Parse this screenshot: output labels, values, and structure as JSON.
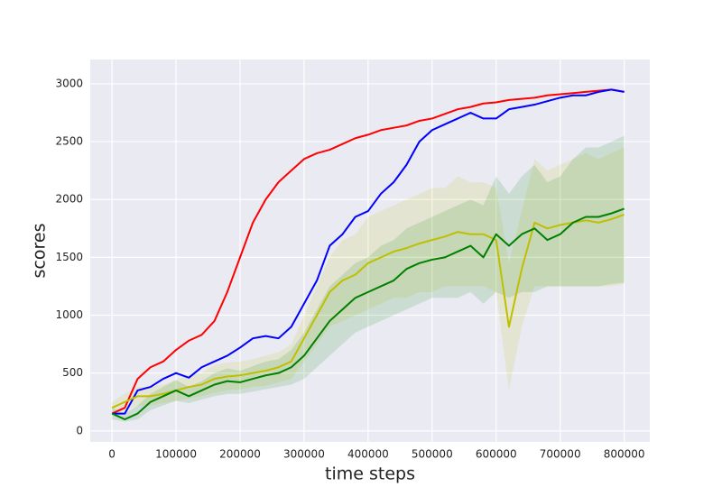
{
  "chart_data": {
    "type": "line",
    "x_label": "time steps",
    "y_label": "scores",
    "x": [
      0,
      20000,
      40000,
      60000,
      80000,
      100000,
      120000,
      140000,
      160000,
      180000,
      200000,
      220000,
      240000,
      260000,
      280000,
      300000,
      320000,
      340000,
      360000,
      380000,
      400000,
      420000,
      440000,
      460000,
      480000,
      500000,
      520000,
      540000,
      560000,
      580000,
      600000,
      620000,
      640000,
      660000,
      680000,
      700000,
      720000,
      740000,
      760000,
      780000,
      800000
    ],
    "series": [
      {
        "color": "#ff0000",
        "values": [
          150,
          200,
          450,
          550,
          600,
          700,
          780,
          830,
          950,
          1200,
          1500,
          1800,
          2000,
          2150,
          2250,
          2350,
          2400,
          2430,
          2480,
          2530,
          2560,
          2600,
          2620,
          2640,
          2680,
          2700,
          2740,
          2780,
          2800,
          2830,
          2840,
          2860,
          2870,
          2880,
          2900,
          2910,
          2920,
          2930,
          2940,
          2950,
          2930
        ]
      },
      {
        "color": "#0000ff",
        "values": [
          150,
          150,
          350,
          380,
          450,
          500,
          460,
          550,
          600,
          650,
          720,
          800,
          820,
          800,
          900,
          1100,
          1300,
          1600,
          1700,
          1850,
          1900,
          2050,
          2150,
          2300,
          2500,
          2600,
          2650,
          2700,
          2750,
          2700,
          2700,
          2780,
          2800,
          2820,
          2850,
          2880,
          2900,
          2900,
          2930,
          2950,
          2930
        ]
      },
      {
        "color": "#bfbf00",
        "values": [
          200,
          250,
          300,
          300,
          320,
          350,
          380,
          400,
          450,
          470,
          480,
          500,
          520,
          550,
          600,
          800,
          1000,
          1200,
          1300,
          1350,
          1450,
          1500,
          1550,
          1580,
          1620,
          1650,
          1680,
          1720,
          1700,
          1700,
          1650,
          900,
          1400,
          1800,
          1750,
          1780,
          1800,
          1820,
          1800,
          1830,
          1870
        ],
        "lower": [
          150,
          180,
          220,
          220,
          240,
          260,
          280,
          300,
          330,
          350,
          360,
          380,
          390,
          420,
          450,
          600,
          750,
          900,
          950,
          1000,
          1050,
          1100,
          1150,
          1150,
          1200,
          1200,
          1250,
          1250,
          1250,
          1250,
          1200,
          350,
          900,
          1250,
          1250,
          1250,
          1250,
          1250,
          1250,
          1250,
          1270
        ],
        "upper": [
          250,
          320,
          380,
          380,
          400,
          440,
          480,
          500,
          570,
          590,
          600,
          620,
          650,
          680,
          750,
          1000,
          1250,
          1500,
          1650,
          1700,
          1850,
          1900,
          1950,
          2000,
          2050,
          2100,
          2100,
          2200,
          2150,
          2150,
          2100,
          1450,
          1900,
          2350,
          2250,
          2300,
          2350,
          2400,
          2350,
          2400,
          2450
        ]
      },
      {
        "color": "#008000",
        "values": [
          150,
          100,
          150,
          250,
          300,
          350,
          300,
          350,
          400,
          430,
          420,
          450,
          480,
          500,
          550,
          650,
          800,
          950,
          1050,
          1150,
          1200,
          1250,
          1300,
          1400,
          1450,
          1480,
          1500,
          1550,
          1600,
          1500,
          1700,
          1600,
          1700,
          1750,
          1650,
          1700,
          1800,
          1850,
          1850,
          1880,
          1920
        ],
        "lower": [
          100,
          80,
          100,
          180,
          220,
          260,
          240,
          270,
          300,
          320,
          320,
          340,
          360,
          380,
          400,
          450,
          550,
          650,
          750,
          850,
          900,
          950,
          1000,
          1050,
          1100,
          1150,
          1150,
          1150,
          1200,
          1100,
          1200,
          1150,
          1200,
          1200,
          1250,
          1250,
          1250,
          1250,
          1250,
          1270,
          1280
        ],
        "upper": [
          200,
          150,
          220,
          320,
          380,
          440,
          380,
          430,
          500,
          540,
          520,
          560,
          600,
          620,
          700,
          850,
          1050,
          1250,
          1350,
          1450,
          1500,
          1600,
          1650,
          1750,
          1800,
          1850,
          1900,
          1950,
          2000,
          1950,
          2200,
          2050,
          2200,
          2300,
          2150,
          2200,
          2350,
          2450,
          2450,
          2500,
          2550
        ]
      }
    ],
    "xlim": [
      -34000,
      840000
    ],
    "ylim": [
      -95,
      3210
    ],
    "xticks": [
      0,
      100000,
      200000,
      300000,
      400000,
      500000,
      600000,
      700000,
      800000
    ],
    "yticks": [
      0,
      500,
      1000,
      1500,
      2000,
      2500,
      3000
    ],
    "grid": true
  }
}
